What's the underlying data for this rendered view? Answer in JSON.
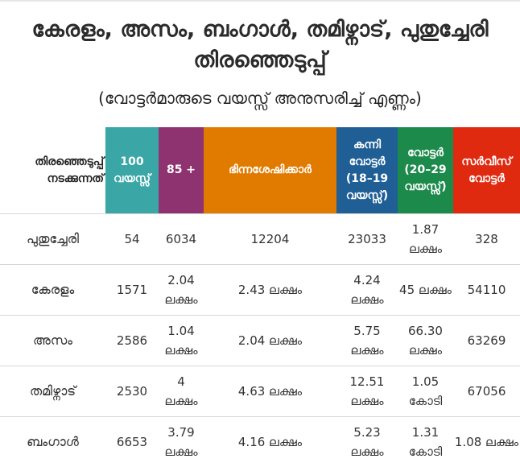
{
  "title": "കേരളം, അസം, ബംഗാൾ, തമിഴ്നാട്, പുതുച്ചേരി തിരഞ്ഞെടുപ്പ്",
  "subtitle": "(വോട്ടർമാരുടെ വയസ്സ് അനുസരിച്ച് എണ്ണം)",
  "colors": {
    "h1": "#3aa6a6",
    "h2": "#8e3270",
    "h3": "#e07b00",
    "h4": "#1f5f96",
    "h5": "#1c8a4a",
    "h6": "#e02a10"
  },
  "table": {
    "headers": [
      {
        "line1": "തിരഞ്ഞെടുപ്പ്",
        "line2": "നടക്കുന്നത്"
      },
      {
        "label": "100 വയസ്സ്"
      },
      {
        "label": "85 +"
      },
      {
        "label": "ഭിന്നശേഷിക്കാർ"
      },
      {
        "label": "കന്നി വോട്ടർ (18–19 വയസ്സ്)"
      },
      {
        "label": "വോട്ടർ (20–29 വയസ്സ്)"
      },
      {
        "label": "സർവീസ് വോട്ടർ"
      }
    ],
    "rows": [
      {
        "name": "പുതുച്ചേരി",
        "c1": "54",
        "c2": "6034",
        "c3": "12204",
        "c4": "23033",
        "c5": "1.87 ലക്ഷം",
        "c6": "328"
      },
      {
        "name": "കേരളം",
        "c1": "1571",
        "c2": "2.04 ലക്ഷം",
        "c3": "2.43 ലക്ഷം",
        "c4": "4.24 ലക്ഷം",
        "c5": "45 ലക്ഷം",
        "c6": "54110"
      },
      {
        "name": "അസം",
        "c1": "2586",
        "c2": "1.04 ലക്ഷം",
        "c3": "2.04 ലക്ഷം",
        "c4": "5.75 ലക്ഷം",
        "c5": "66.30 ലക്ഷം",
        "c6": "63269"
      },
      {
        "name": "തമിഴ്നാട്",
        "c1": "2530",
        "c2": "4 ലക്ഷം",
        "c3": "4.63 ലക്ഷം",
        "c4": "12.51 ലക്ഷം",
        "c5": "1.05 കോടി",
        "c6": "67056"
      },
      {
        "name": "ബംഗാൾ",
        "c1": "6653",
        "c2": "3.79 ലക്ഷം",
        "c3": "4.16 ലക്ഷം",
        "c4": "5.23 ലക്ഷം",
        "c5": "1.31 കോടി",
        "c6": "1.08 ലക്ഷം"
      }
    ]
  }
}
